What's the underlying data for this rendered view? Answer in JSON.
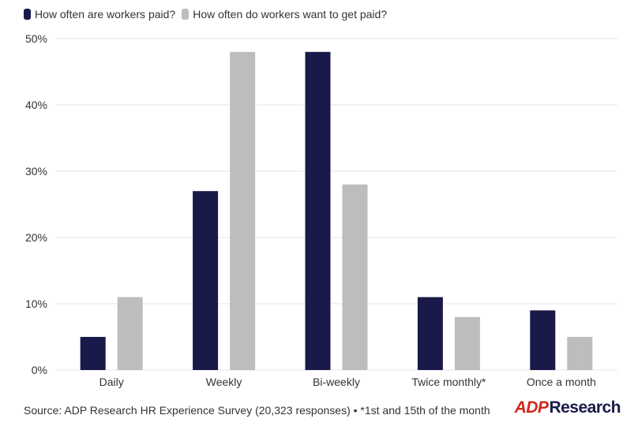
{
  "legend": {
    "series_a": "How often are workers paid?",
    "series_b": "How often do workers want to get paid?"
  },
  "footer": {
    "source": "Source: ADP Research HR Experience Survey (20,323 responses) • *1st and 15th of the month"
  },
  "logo": {
    "mark": "ADP",
    "word": "Research"
  },
  "colors": {
    "series_a": "#1a1a4a",
    "series_b": "#bdbdbd",
    "logo_red": "#d0271d",
    "grid": "#e6e6e6"
  },
  "chart_data": {
    "type": "bar",
    "title": "",
    "xlabel": "",
    "ylabel": "",
    "categories": [
      "Daily",
      "Weekly",
      "Bi-weekly",
      "Twice monthly*",
      "Once a month"
    ],
    "series": [
      {
        "name": "How often are workers paid?",
        "values": [
          5,
          27,
          48,
          11,
          9
        ]
      },
      {
        "name": "How often do workers want to get paid?",
        "values": [
          11,
          48,
          28,
          8,
          5
        ]
      }
    ],
    "ylim": [
      0,
      50
    ],
    "yticks": [
      0,
      10,
      20,
      30,
      40,
      50
    ],
    "ytick_labels": [
      "0%",
      "10%",
      "20%",
      "30%",
      "40%",
      "50%"
    ],
    "grid": true,
    "legend_position": "top-left"
  }
}
